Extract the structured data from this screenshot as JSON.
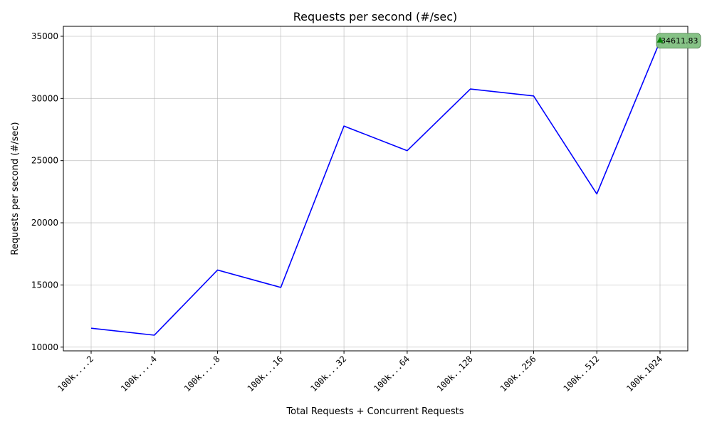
{
  "chart_data": {
    "type": "line",
    "title": "Requests per second (#/sec)",
    "xlabel": "Total Requests + Concurrent Requests",
    "ylabel": "Requests per second (#/sec)",
    "categories": [
      "100k....2",
      "100k....4",
      "100k....8",
      "100k...16",
      "100k...32",
      "100k...64",
      "100k..128",
      "100k..256",
      "100k..512",
      "100k.1024"
    ],
    "series": [
      {
        "values": [
          11520,
          10960,
          16200,
          14800,
          27780,
          25800,
          30760,
          30200,
          22320,
          34611.83
        ],
        "color": "#0000ff"
      }
    ],
    "yticks": [
      10000,
      15000,
      20000,
      25000,
      30000,
      35000
    ],
    "ylim": [
      9700,
      35800
    ],
    "grid": true,
    "annotation": {
      "text": "34611.83",
      "category_index": 9,
      "value": 34611.83,
      "marker_color": "#008000",
      "box_color": "#7fbf7f"
    }
  }
}
